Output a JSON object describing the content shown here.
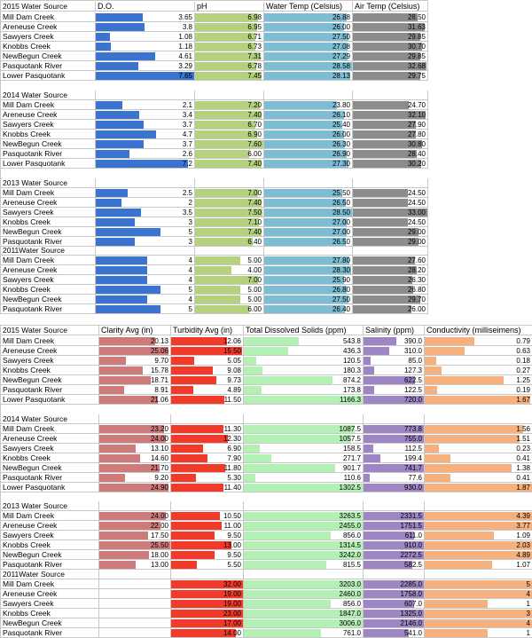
{
  "colors": {
    "do": "#3b73d1",
    "ph": "#b4d27e",
    "water": "#7cbdd3",
    "air": "#8c8c8c",
    "clarity": "#cc7a7a",
    "turbidity": "#f23a2a",
    "tds": "#b3f0b3",
    "salinity": "#9e85c4",
    "conductivity": "#f6b07e"
  },
  "upper": {
    "columns": [
      "",
      "D.O.",
      "pH",
      "Water Temp (Celsius)",
      "Air Temp (Celsius)"
    ],
    "sections": [
      {
        "title": "2015 Water Source",
        "header_row": true,
        "rows": [
          {
            "site": "Mill Dam Creek",
            "values": [
              "3.65",
              "6.98",
              "26.88",
              "28.50"
            ]
          },
          {
            "site": "Areneuse Creek",
            "values": [
              "3.8",
              "6.95",
              "26.00",
              "31.63"
            ]
          },
          {
            "site": "Sawyers Creek",
            "values": [
              "1.08",
              "6.71",
              "27.50",
              "29.85"
            ]
          },
          {
            "site": "Knobbs Creek",
            "values": [
              "1.18",
              "6.73",
              "27.08",
              "30.70"
            ]
          },
          {
            "site": "NewBegun Creek",
            "values": [
              "4.61",
              "7.31",
              "27.29",
              "29.85"
            ]
          },
          {
            "site": "Pasquotank River",
            "values": [
              "3.29",
              "6.78",
              "28.58",
              "32.68"
            ]
          },
          {
            "site": "Lower Pasquotank",
            "values": [
              "7.65",
              "7.45",
              "28.13",
              "29.75"
            ]
          }
        ]
      },
      {
        "title": "2014 Water Source",
        "header_row": false,
        "rows": [
          {
            "site": "Mill Dam Creek",
            "values": [
              "2.1",
              "7.20",
              "23.80",
              "24.70"
            ]
          },
          {
            "site": "Areneuse Creek",
            "values": [
              "3.4",
              "7.40",
              "26.10",
              "32.10"
            ]
          },
          {
            "site": "Sawyers Creek",
            "values": [
              "3.7",
              "6.70",
              "25.40",
              "27.90"
            ]
          },
          {
            "site": "Knobbs Creek",
            "values": [
              "4.7",
              "6.90",
              "26.00",
              "27.80"
            ]
          },
          {
            "site": "NewBegun Creek",
            "values": [
              "3.7",
              "7.60",
              "26.30",
              "30.80"
            ]
          },
          {
            "site": "Pasquotank River",
            "values": [
              "2.6",
              "6.00",
              "26.90",
              "28.40"
            ]
          },
          {
            "site": "Lower Pasquotank",
            "values": [
              "7.2",
              "7.40",
              "27.30",
              "30.20"
            ]
          }
        ]
      },
      {
        "title": "2013 Water Source",
        "header_row": false,
        "rows": [
          {
            "site": "Mill Dam Creek",
            "values": [
              "2.5",
              "7.00",
              "25.50",
              "24.50"
            ]
          },
          {
            "site": "Areneuse Creek",
            "values": [
              "2",
              "7.40",
              "26.50",
              "24.50"
            ]
          },
          {
            "site": "Sawyers Creek",
            "values": [
              "3.5",
              "7.50",
              "28.50",
              "33.00"
            ]
          },
          {
            "site": "Knobbs Creek",
            "values": [
              "3",
              "7.10",
              "27.00",
              "24.50"
            ]
          },
          {
            "site": "NewBegun Creek",
            "values": [
              "5",
              "7.40",
              "27.00",
              "29.00"
            ]
          },
          {
            "site": "Pasquotank River",
            "values": [
              "3",
              "6.40",
              "26.50",
              "29.00"
            ]
          }
        ]
      },
      {
        "title": "2011Water Source",
        "header_row": false,
        "rows": [
          {
            "site": "Mill Dam Creek",
            "values": [
              "4",
              "5.00",
              "27.80",
              "27.60"
            ]
          },
          {
            "site": "Areneuse Creek",
            "values": [
              "4",
              "4.00",
              "28.30",
              "28.20"
            ]
          },
          {
            "site": "Sawyers Creek",
            "values": [
              "4",
              "7.00",
              "25.90",
              "26.30"
            ]
          },
          {
            "site": "Knobbs Creek",
            "values": [
              "5",
              "5.00",
              "26.80",
              "26.80"
            ]
          },
          {
            "site": "NewBegun Creek",
            "values": [
              "4",
              "5.00",
              "27.50",
              "29.70"
            ]
          },
          {
            "site": "Pasquotank River",
            "values": [
              "5",
              "6.00",
              "26.40",
              "26.00"
            ]
          }
        ]
      }
    ]
  },
  "lower": {
    "columns": [
      "",
      "Clarity Avg (in)",
      "Turbidity Avg (in)",
      "Total Dissolved Solids (ppm)",
      "Salinity (ppm)",
      "Conductivity (milliseimens)"
    ],
    "sections": [
      {
        "title": "2015 Water Source",
        "header_row": true,
        "rows": [
          {
            "site": "Mill Dam Creek",
            "values": [
              "20.13",
              "12.06",
              "543.8",
              "390.0",
              "0.79"
            ]
          },
          {
            "site": "Areneuse Creek",
            "values": [
              "25.06",
              "15.50",
              "436.3",
              "310.0",
              "0.63"
            ]
          },
          {
            "site": "Sawyers Creek",
            "values": [
              "9.70",
              "5.05",
              "120.5",
              "85.0",
              "0.18"
            ]
          },
          {
            "site": "Knobbs Creek",
            "values": [
              "15.78",
              "9.08",
              "180.3",
              "127.3",
              "0.27"
            ]
          },
          {
            "site": "NewBegun Creek",
            "values": [
              "18.71",
              "9.73",
              "874.2",
              "622.5",
              "1.25"
            ]
          },
          {
            "site": "Pasquotank River",
            "values": [
              "8.91",
              "4.89",
              "173.8",
              "122.5",
              "0.19"
            ]
          },
          {
            "site": "Lower Pasquotank",
            "values": [
              "21.06",
              "11.50",
              "1166.3",
              "720.0",
              "1.67"
            ]
          }
        ]
      },
      {
        "title": "2014 Water Source",
        "header_row": false,
        "rows": [
          {
            "site": "Mill Dam Creek",
            "values": [
              "23.20",
              "11.30",
              "1087.5",
              "773.8",
              "1.56"
            ]
          },
          {
            "site": "Areneuse Creek",
            "values": [
              "24.00",
              "12.30",
              "1057.5",
              "755.0",
              "1.51"
            ]
          },
          {
            "site": "Sawyers Creek",
            "values": [
              "13.10",
              "6.90",
              "158.5",
              "112.5",
              "0.23"
            ]
          },
          {
            "site": "Knobbs Creek",
            "values": [
              "14.60",
              "7.90",
              "271.7",
              "199.4",
              "0.41"
            ]
          },
          {
            "site": "NewBegun Creek",
            "values": [
              "21.70",
              "11.80",
              "901.7",
              "741.7",
              "1.38"
            ]
          },
          {
            "site": "Pasquotank River",
            "values": [
              "9.20",
              "5.30",
              "110.6",
              "77.6",
              "0.41"
            ]
          },
          {
            "site": "Lower Pasquotank",
            "values": [
              "24.90",
              "11.40",
              "1302.5",
              "930.0",
              "1.87"
            ]
          }
        ]
      },
      {
        "title": "2013 Water Source",
        "header_row": false,
        "rows": [
          {
            "site": "Mill Dam Creek",
            "values": [
              "24.00",
              "10.50",
              "3263.5",
              "2331.5",
              "4.39"
            ]
          },
          {
            "site": "Areneuse Creek",
            "values": [
              "22.00",
              "11.00",
              "2455.0",
              "1751.5",
              "3.77"
            ]
          },
          {
            "site": "Sawyers Creek",
            "values": [
              "17.50",
              "9.50",
              "856.0",
              "611.0",
              "1.09"
            ]
          },
          {
            "site": "Knobbs Creek",
            "values": [
              "25.50",
              "13.00",
              "1314.5",
              "910.0",
              "2.03"
            ]
          },
          {
            "site": "NewBegun Creek",
            "values": [
              "18.00",
              "9.50",
              "3242.0",
              "2272.5",
              "4.89"
            ]
          },
          {
            "site": "Pasquotank River",
            "values": [
              "13.00",
              "5.50",
              "815.5",
              "582.5",
              "1.07"
            ]
          }
        ]
      },
      {
        "title": "2011Water Source",
        "header_row": false,
        "rows": [
          {
            "site": "Mill Dam Creek",
            "values": [
              "",
              "32.00",
              "3203.0",
              "2285.0",
              "5"
            ]
          },
          {
            "site": "Areneuse Creek",
            "values": [
              "",
              "19.00",
              "2460.0",
              "1758.0",
              "4"
            ]
          },
          {
            "site": "Sawyers Creek",
            "values": [
              "",
              "19.00",
              "856.0",
              "607.0",
              "1"
            ]
          },
          {
            "site": "Knobbs Creek",
            "values": [
              "",
              "23.00",
              "1847.0",
              "1325.0",
              "3"
            ]
          },
          {
            "site": "NewBegun Creek",
            "values": [
              "",
              "17.00",
              "3006.0",
              "2146.0",
              "4"
            ]
          },
          {
            "site": "Pasquotank River",
            "values": [
              "",
              "14.00",
              "761.0",
              "541.0",
              "1"
            ]
          }
        ]
      }
    ]
  }
}
